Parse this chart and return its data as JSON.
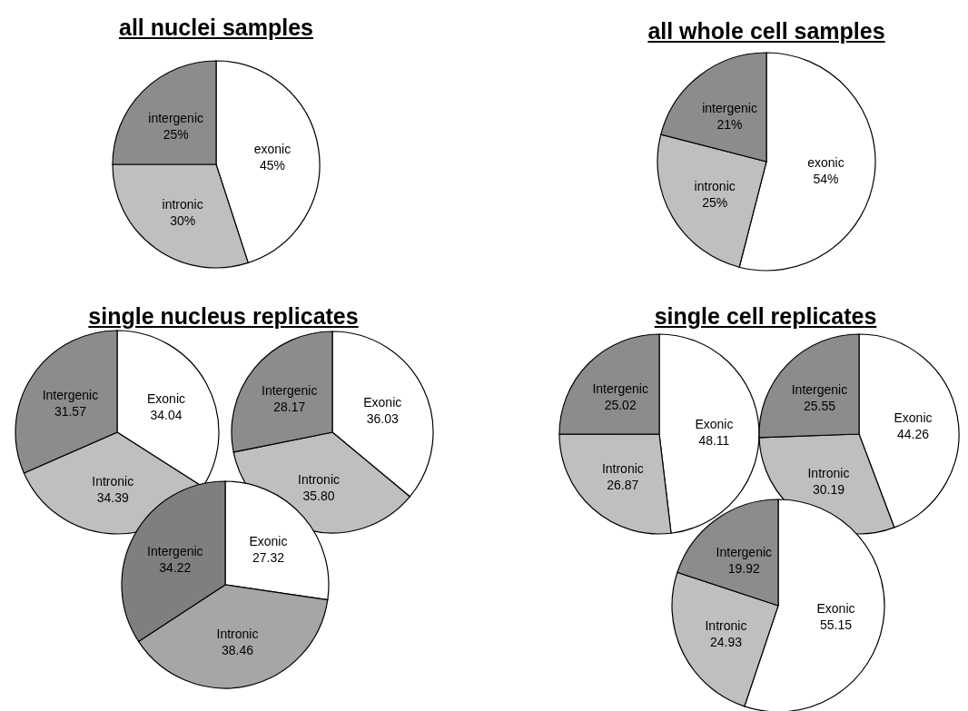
{
  "chart_data": [
    {
      "type": "pie",
      "title": "all nuclei samples",
      "categories": [
        "exonic",
        "intronic",
        "intergenic"
      ],
      "values": [
        45,
        30,
        25
      ],
      "value_labels": [
        "45%",
        "30%",
        "25%"
      ],
      "colors": [
        "#ffffff",
        "#bfbfbf",
        "#8c8c8c"
      ]
    },
    {
      "type": "pie",
      "title": "all whole cell samples",
      "categories": [
        "exonic",
        "intronic",
        "intergenic"
      ],
      "values": [
        54,
        25,
        21
      ],
      "value_labels": [
        "54%",
        "25%",
        "21%"
      ],
      "colors": [
        "#ffffff",
        "#bfbfbf",
        "#8c8c8c"
      ]
    },
    {
      "type": "pie",
      "title": "single nucleus replicates",
      "categories": [
        "Exonic",
        "Intronic",
        "Intergenic"
      ],
      "values": [
        34.04,
        34.39,
        31.57
      ],
      "data_labels": true,
      "colors": [
        "#ffffff",
        "#bfbfbf",
        "#8c8c8c"
      ]
    },
    {
      "type": "pie",
      "categories": [
        "Exonic",
        "Intronic",
        "Intergenic"
      ],
      "values": [
        36.03,
        35.8,
        28.17
      ],
      "value_labels": [
        "36.03",
        "35.80",
        "28.17"
      ],
      "colors": [
        "#ffffff",
        "#bfbfbf",
        "#8c8c8c"
      ]
    },
    {
      "type": "pie",
      "categories": [
        "Exonic",
        "Intronic",
        "Intergenic"
      ],
      "values": [
        27.32,
        38.46,
        34.22
      ],
      "data_labels": true,
      "colors": [
        "#ffffff",
        "#a6a6a6",
        "#7f7f7f"
      ]
    },
    {
      "type": "pie",
      "title": "single cell replicates",
      "categories": [
        "Exonic",
        "Intronic",
        "Intergenic"
      ],
      "values": [
        48.11,
        26.87,
        25.02
      ],
      "data_labels": true,
      "colors": [
        "#ffffff",
        "#bfbfbf",
        "#8c8c8c"
      ]
    },
    {
      "type": "pie",
      "categories": [
        "Exonic",
        "Intronic",
        "Intergenic"
      ],
      "values": [
        44.26,
        30.19,
        25.55
      ],
      "data_labels": true,
      "colors": [
        "#ffffff",
        "#bfbfbf",
        "#8c8c8c"
      ]
    },
    {
      "type": "pie",
      "categories": [
        "Exonic",
        "Intronic",
        "Intergenic"
      ],
      "values": [
        55.15,
        24.93,
        19.92
      ],
      "data_labels": true,
      "colors": [
        "#ffffff",
        "#bfbfbf",
        "#8c8c8c"
      ]
    }
  ]
}
